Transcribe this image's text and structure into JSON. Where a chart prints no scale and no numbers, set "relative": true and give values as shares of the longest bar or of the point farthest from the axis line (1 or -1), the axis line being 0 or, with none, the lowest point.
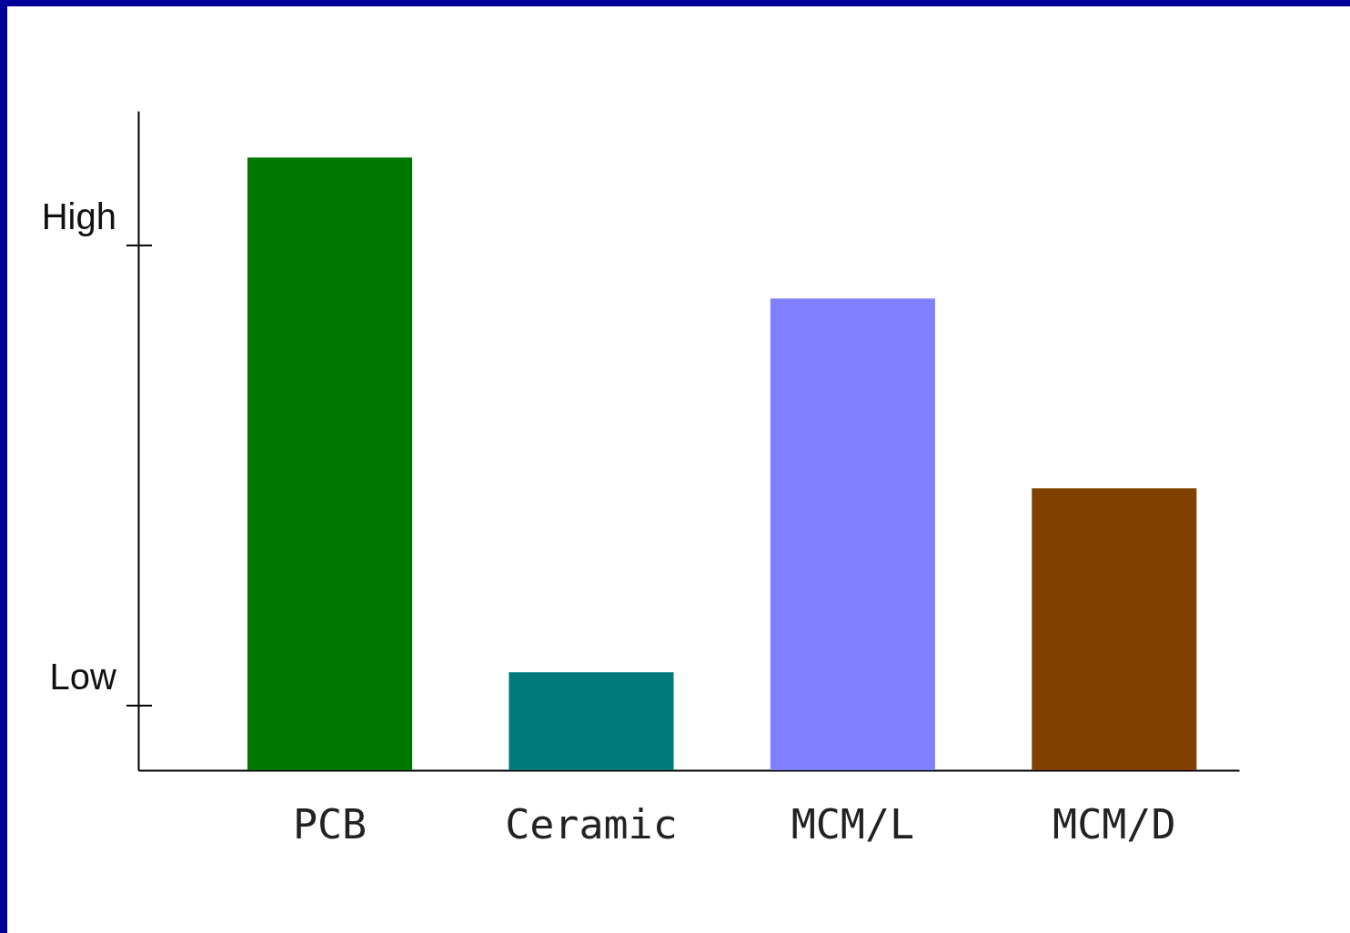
{
  "chart_data": {
    "type": "bar",
    "relative": true,
    "categories": [
      "PCB",
      "Ceramic",
      "MCM/L",
      "MCM/D"
    ],
    "values": [
      1,
      0.16,
      0.77,
      0.46
    ],
    "colors": [
      "#007800",
      "#007b7b",
      "#8080ff",
      "#7f4000"
    ],
    "annotations": [
      "High",
      "Low"
    ]
  }
}
